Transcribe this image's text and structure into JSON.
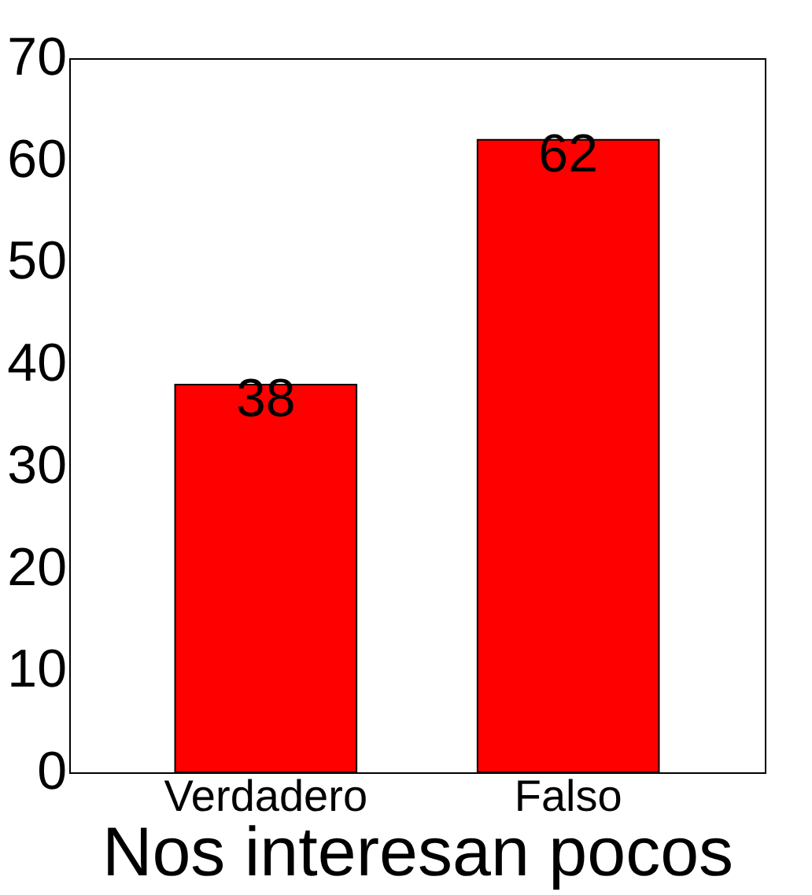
{
  "chart_data": {
    "type": "bar",
    "xlabel": "Nos interesan pocos",
    "categories": [
      "Verdadero",
      "Falso"
    ],
    "values": [
      38,
      62
    ],
    "color": "#ff0000",
    "ylim": [
      0,
      70
    ],
    "yticks": [
      0,
      10,
      20,
      30,
      40,
      50,
      60,
      70
    ],
    "grid": false,
    "data_labels": true
  }
}
